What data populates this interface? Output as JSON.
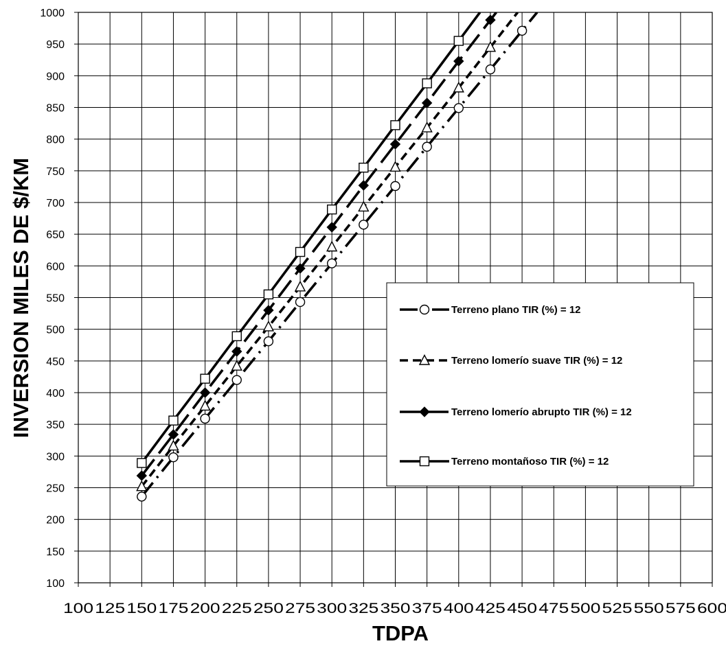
{
  "chart_data": {
    "type": "line",
    "xlabel": "TDPA",
    "ylabel": "INVERSION MILES DE $/KM",
    "xlim": [
      100,
      600
    ],
    "ylim": [
      100,
      1000
    ],
    "xticks": [
      100,
      125,
      150,
      175,
      200,
      225,
      250,
      275,
      300,
      325,
      350,
      375,
      400,
      425,
      450,
      475,
      500,
      525,
      550,
      575,
      600
    ],
    "yticks": [
      100,
      150,
      200,
      250,
      300,
      350,
      400,
      450,
      500,
      550,
      600,
      650,
      700,
      750,
      800,
      850,
      900,
      950,
      1000
    ],
    "grid": true,
    "legend_position": "right",
    "series": [
      {
        "name": "Terreno plano TIR (%) = 12",
        "marker": "circle-open",
        "dash": "long-dot",
        "x": [
          150,
          175,
          200,
          225,
          250,
          275,
          300,
          325,
          350,
          375,
          400,
          425,
          450
        ],
        "y": [
          236,
          298,
          359,
          420,
          481,
          543,
          604,
          665,
          726,
          788,
          849,
          910,
          971
        ]
      },
      {
        "name": "Terreno lomerío suave TIR (%) = 12",
        "marker": "triangle-open",
        "dash": "dashed",
        "x": [
          150,
          175,
          200,
          225,
          250,
          275,
          300,
          325,
          350,
          375,
          400,
          425
        ],
        "y": [
          252,
          316,
          379,
          442,
          504,
          567,
          630,
          693,
          756,
          818,
          881,
          945
        ]
      },
      {
        "name": "Terreno lomerío abrupto TIR (%) = 12",
        "marker": "diamond-filled",
        "dash": "long-dash",
        "x": [
          150,
          175,
          200,
          225,
          250,
          275,
          300,
          325,
          350,
          375,
          400,
          425
        ],
        "y": [
          269,
          334,
          400,
          465,
          530,
          596,
          661,
          727,
          792,
          857,
          923,
          988
        ]
      },
      {
        "name": "Terreno montañoso TIR (%) = 12",
        "marker": "square-open",
        "dash": "solid",
        "x": [
          150,
          175,
          200,
          225,
          250,
          275,
          300,
          325,
          350,
          375,
          400
        ],
        "y": [
          289,
          356,
          422,
          489,
          555,
          622,
          689,
          755,
          822,
          888,
          955
        ]
      }
    ]
  }
}
